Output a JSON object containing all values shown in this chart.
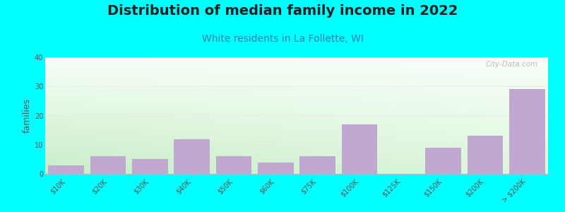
{
  "title": "Distribution of median family income in 2022",
  "subtitle": "White residents in La Follette, WI",
  "ylabel": "families",
  "background_color": "#00FFFF",
  "bar_color": "#C0A8D0",
  "categories": [
    "$10K",
    "$20K",
    "$30K",
    "$40K",
    "$50K",
    "$60K",
    "$75K",
    "$100K",
    "$125K",
    "$150K",
    "$200K",
    "> $200K"
  ],
  "values": [
    3,
    6,
    5,
    12,
    6,
    4,
    6,
    17,
    0,
    9,
    13,
    29
  ],
  "ylim": [
    0,
    40
  ],
  "yticks": [
    0,
    10,
    20,
    30,
    40
  ],
  "title_fontsize": 14,
  "subtitle_fontsize": 10,
  "ylabel_fontsize": 9,
  "tick_fontsize": 7,
  "watermark": "City-Data.com",
  "grid_color": "#E8E8E8",
  "title_color": "#222222",
  "subtitle_color": "#2288AA",
  "ylabel_color": "#555555",
  "tick_color": "#555555",
  "bg_top_color": "#F5FFF5",
  "bg_bottom_left_color": "#C8EEC8",
  "bg_bottom_right_color": "#EEF5FF"
}
